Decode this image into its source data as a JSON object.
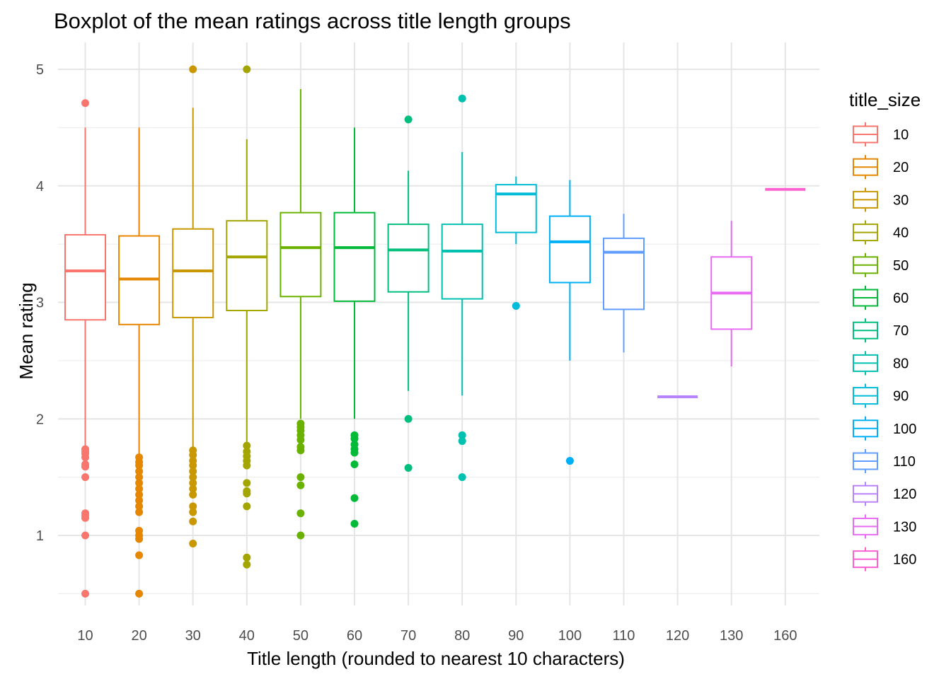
{
  "chart_data": {
    "type": "boxplot",
    "title": "Boxplot of the mean ratings across title length groups",
    "xlabel": "Title length (rounded to nearest 10 characters)",
    "ylabel": "Mean rating",
    "ylim": [
      0.4,
      5.2
    ],
    "y_ticks": [
      1,
      2,
      3,
      4,
      5
    ],
    "grid": true,
    "legend": {
      "title": "title_size",
      "position": "right"
    },
    "categories": [
      "10",
      "20",
      "30",
      "40",
      "50",
      "60",
      "70",
      "80",
      "90",
      "100",
      "110",
      "120",
      "130",
      "160"
    ],
    "series": [
      {
        "name": "10",
        "color": "#F8766D",
        "whisker_low": 1.77,
        "q1": 2.85,
        "median": 3.27,
        "q3": 3.58,
        "whisker_high": 4.5,
        "outliers": [
          4.71,
          1.74,
          1.72,
          1.7,
          1.67,
          1.61,
          1.59,
          1.5,
          1.19,
          1.17,
          1.15,
          1.0,
          0.5
        ]
      },
      {
        "name": "20",
        "color": "#E58700",
        "whisker_low": 1.68,
        "q1": 2.81,
        "median": 3.2,
        "q3": 3.57,
        "whisker_high": 4.5,
        "outliers": [
          1.67,
          1.63,
          1.6,
          1.55,
          1.5,
          1.45,
          1.4,
          1.35,
          1.3,
          1.25,
          1.2,
          1.04,
          1.0,
          0.97,
          0.83,
          0.5
        ]
      },
      {
        "name": "30",
        "color": "#C99800",
        "whisker_low": 1.75,
        "q1": 2.87,
        "median": 3.27,
        "q3": 3.63,
        "whisker_high": 4.67,
        "outliers": [
          5.0,
          1.73,
          1.69,
          1.64,
          1.6,
          1.55,
          1.5,
          1.45,
          1.4,
          1.35,
          1.25,
          1.2,
          1.12,
          0.93
        ]
      },
      {
        "name": "40",
        "color": "#A3A500",
        "whisker_low": 1.8,
        "q1": 2.93,
        "median": 3.39,
        "q3": 3.7,
        "whisker_high": 4.4,
        "outliers": [
          5.0,
          1.77,
          1.72,
          1.68,
          1.64,
          1.6,
          1.45,
          1.38,
          1.36,
          1.25,
          0.81,
          0.75
        ]
      },
      {
        "name": "50",
        "color": "#6BB100",
        "whisker_low": 2.0,
        "q1": 3.05,
        "median": 3.47,
        "q3": 3.77,
        "whisker_high": 4.83,
        "outliers": [
          1.96,
          1.93,
          1.9,
          1.86,
          1.82,
          1.76,
          1.73,
          1.5,
          1.43,
          1.19,
          1.0
        ]
      },
      {
        "name": "60",
        "color": "#00BA38",
        "whisker_low": 2.0,
        "q1": 3.01,
        "median": 3.47,
        "q3": 3.77,
        "whisker_high": 4.5,
        "outliers": [
          1.86,
          1.83,
          1.78,
          1.74,
          1.71,
          1.61,
          1.32,
          1.1
        ]
      },
      {
        "name": "70",
        "color": "#00BF7D",
        "whisker_low": 2.24,
        "q1": 3.09,
        "median": 3.45,
        "q3": 3.67,
        "whisker_high": 4.13,
        "outliers": [
          4.57,
          2.0,
          1.58
        ]
      },
      {
        "name": "80",
        "color": "#00C0AF",
        "whisker_low": 2.2,
        "q1": 3.03,
        "median": 3.44,
        "q3": 3.67,
        "whisker_high": 4.29,
        "outliers": [
          4.75,
          1.86,
          1.81,
          1.5
        ]
      },
      {
        "name": "90",
        "color": "#00BCD8",
        "whisker_low": 3.5,
        "q1": 3.6,
        "median": 3.93,
        "q3": 4.01,
        "whisker_high": 4.08,
        "outliers": [
          2.97
        ]
      },
      {
        "name": "100",
        "color": "#00B0F6",
        "whisker_low": 2.5,
        "q1": 3.17,
        "median": 3.52,
        "q3": 3.74,
        "whisker_high": 4.05,
        "outliers": [
          1.64
        ]
      },
      {
        "name": "110",
        "color": "#619CFF",
        "whisker_low": 2.57,
        "q1": 2.94,
        "median": 3.43,
        "q3": 3.55,
        "whisker_high": 3.76,
        "outliers": []
      },
      {
        "name": "120",
        "color": "#B983FF",
        "whisker_low": 2.19,
        "q1": 2.19,
        "median": 2.19,
        "q3": 2.19,
        "whisker_high": 2.19,
        "outliers": []
      },
      {
        "name": "130",
        "color": "#E76BF3",
        "whisker_low": 2.45,
        "q1": 2.77,
        "median": 3.08,
        "q3": 3.39,
        "whisker_high": 3.7,
        "outliers": []
      },
      {
        "name": "160",
        "color": "#FD61D1",
        "whisker_low": 3.97,
        "q1": 3.97,
        "median": 3.97,
        "q3": 3.97,
        "whisker_high": 3.97,
        "outliers": []
      }
    ]
  }
}
